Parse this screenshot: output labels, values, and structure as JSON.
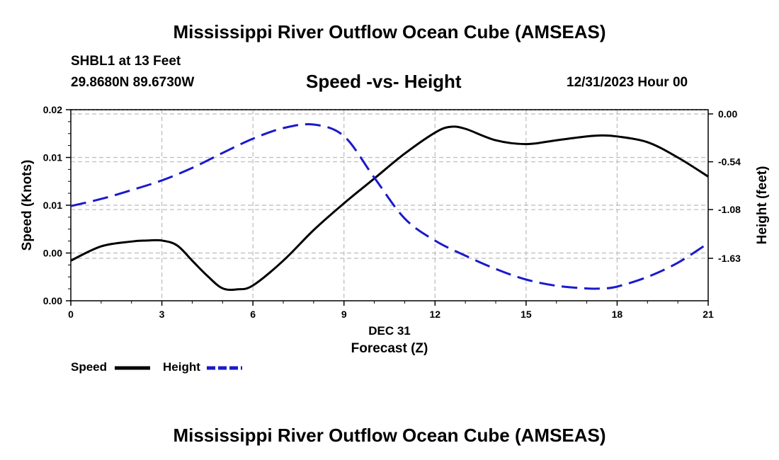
{
  "header": {
    "title": "Mississippi River Outflow Ocean Cube (AMSEAS)",
    "station": "SHBL1 at 13 Feet",
    "coords": "29.8680N  89.6730W",
    "subtitle": "Speed -vs- Height",
    "datetime": "12/31/2023 Hour 00"
  },
  "footer": {
    "date_label": "DEC 31",
    "title": "Mississippi River Outflow Ocean Cube (AMSEAS)"
  },
  "legend": {
    "speed": "Speed",
    "height": "Height"
  },
  "colors": {
    "speed": "#000000",
    "height": "#1a1acc",
    "grid": "#bbbbbb"
  },
  "chart_data": {
    "type": "line",
    "title": "Speed -vs- Height",
    "xlabel": "Forecast (Z)",
    "ylabel": "Speed (Knots)",
    "y2label": "Height (feet)",
    "xlim": [
      0,
      21
    ],
    "x_ticks": [
      "0",
      "3",
      "6",
      "9",
      "12",
      "15",
      "18",
      "21"
    ],
    "y_ticks": [
      "0.00",
      "0.00",
      "0.01",
      "0.01",
      "0.02"
    ],
    "y2_ticks": [
      "0.00",
      "-0.54",
      "-1.08",
      "-1.63"
    ],
    "legend_position": "bottom-left",
    "series": [
      {
        "name": "Speed",
        "axis": "left",
        "unit": "fraction of axis range",
        "x": [
          0,
          1,
          2,
          2.5,
          3,
          3.5,
          4,
          4.5,
          5,
          5.5,
          6,
          7,
          8,
          9,
          10,
          11,
          12,
          12.5,
          13,
          14,
          15,
          16,
          17,
          17.5,
          18,
          19,
          20,
          21
        ],
        "values": [
          0.21,
          0.285,
          0.31,
          0.315,
          0.315,
          0.29,
          0.21,
          0.13,
          0.065,
          0.06,
          0.08,
          0.21,
          0.37,
          0.51,
          0.64,
          0.77,
          0.88,
          0.91,
          0.9,
          0.84,
          0.82,
          0.84,
          0.86,
          0.865,
          0.86,
          0.83,
          0.75,
          0.65
        ]
      },
      {
        "name": "Height",
        "axis": "right",
        "unit": "feet",
        "x": [
          0,
          1,
          2,
          3,
          4,
          5,
          6,
          7,
          8,
          9,
          10,
          11,
          12,
          13,
          14,
          15,
          16,
          17,
          17.5,
          18,
          19,
          20,
          21
        ],
        "values": [
          -1.04,
          -0.96,
          -0.86,
          -0.75,
          -0.61,
          -0.44,
          -0.28,
          -0.16,
          -0.12,
          -0.25,
          -0.72,
          -1.18,
          -1.43,
          -1.6,
          -1.75,
          -1.87,
          -1.94,
          -1.97,
          -1.97,
          -1.95,
          -1.84,
          -1.68,
          -1.46
        ]
      }
    ]
  }
}
